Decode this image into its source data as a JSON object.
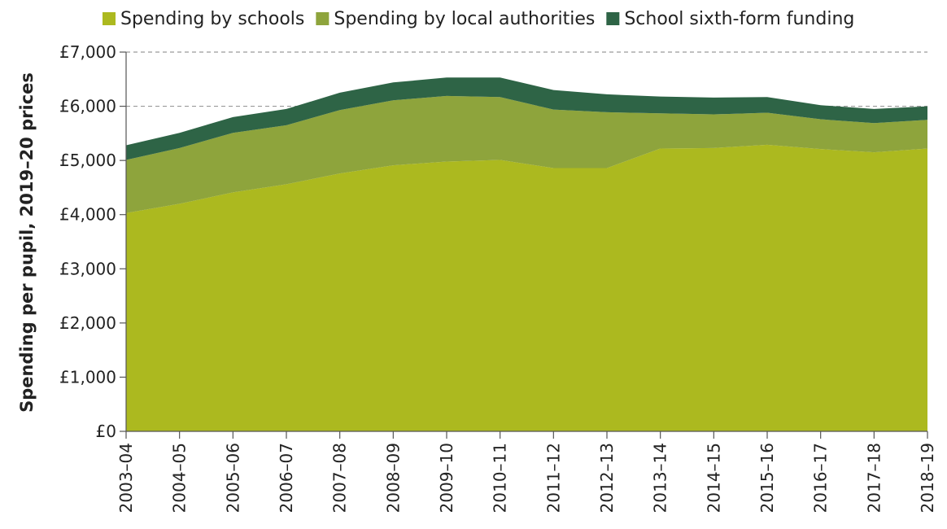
{
  "chart_data": {
    "type": "area",
    "stacked": true,
    "title": "",
    "xlabel": "",
    "ylabel": "Spending per pupil, 2019–20 prices",
    "ylim": [
      0,
      7000
    ],
    "yticks": [
      0,
      1000,
      2000,
      3000,
      4000,
      5000,
      6000,
      7000
    ],
    "ytick_labels": [
      "£0",
      "£1,000",
      "£2,000",
      "£3,000",
      "£4,000",
      "£5,000",
      "£6,000",
      "£7,000"
    ],
    "grid": "dashed horizontal lines at £6,000 and £7,000",
    "legend_position": "top",
    "categories": [
      "2003–04",
      "2004–05",
      "2005–06",
      "2006–07",
      "2007–08",
      "2008–09",
      "2009–10",
      "2010–11",
      "2011–12",
      "2012–13",
      "2013–14",
      "2014–15",
      "2015–16",
      "2016–17",
      "2017–18",
      "2018–19"
    ],
    "series": [
      {
        "name": "Spending by schools",
        "color": "#acb91f",
        "values": [
          4030,
          4200,
          4410,
          4560,
          4760,
          4910,
          4980,
          5010,
          4860,
          4860,
          5220,
          5230,
          5290,
          5210,
          5150,
          5220
        ]
      },
      {
        "name": "Spending by local authorities",
        "color": "#8ea43c",
        "values": [
          980,
          1030,
          1100,
          1090,
          1170,
          1200,
          1210,
          1160,
          1080,
          1030,
          650,
          620,
          590,
          550,
          540,
          530
        ]
      },
      {
        "name": "School sixth-form funding",
        "color": "#2e6446",
        "values": [
          270,
          280,
          290,
          300,
          320,
          330,
          340,
          360,
          360,
          330,
          310,
          310,
          290,
          260,
          260,
          250
        ]
      }
    ]
  }
}
